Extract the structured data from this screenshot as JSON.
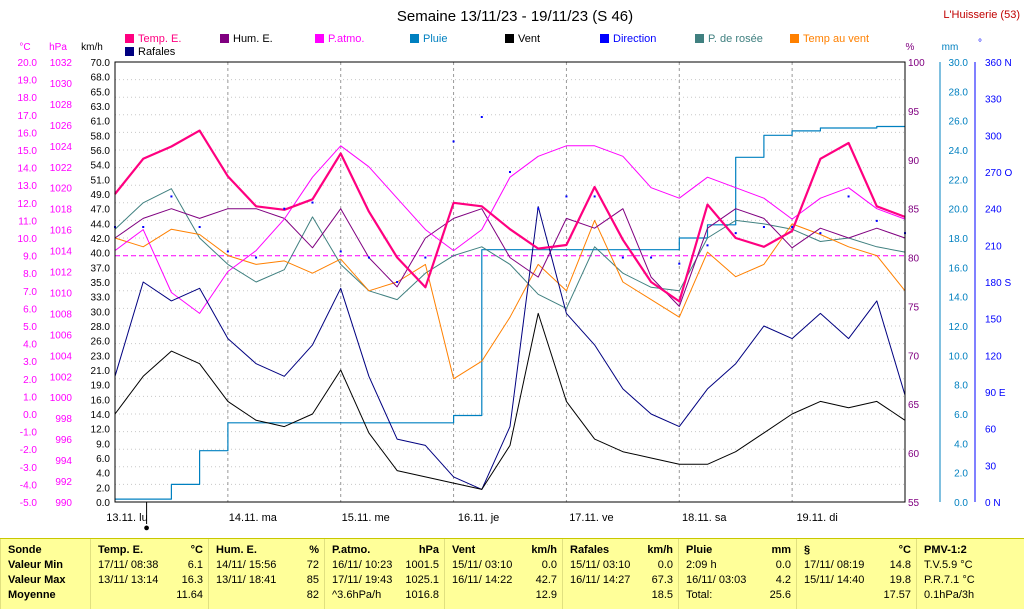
{
  "chart_data": {
    "type": "line",
    "title": "Semaine 13/11/23 - 19/11/23 (S 46)",
    "station": "L'Huisserie (53)",
    "colors": {
      "temp": "#ff0080",
      "hum": "#800080",
      "patmo": "#ff00ff",
      "pluie": "#0080c0",
      "vent": "#000000",
      "direction": "#0000ff",
      "rosee": "#408080",
      "tempvent": "#ff8000",
      "rafales": "#000080",
      "axis_c": "#ff00ff",
      "axis_right": "#0080c0"
    },
    "legend": [
      {
        "label": "Temp. E.",
        "color": "#ff0080"
      },
      {
        "label": "Hum. E.",
        "color": "#800080"
      },
      {
        "label": "P.atmo.",
        "color": "#ff00ff"
      },
      {
        "label": "Pluie",
        "color": "#0080c0"
      },
      {
        "label": "Vent",
        "color": "#000000"
      },
      {
        "label": "Direction",
        "color": "#0000ff"
      },
      {
        "label": "P. de rosée",
        "color": "#408080"
      },
      {
        "label": "Temp au vent",
        "color": "#ff8000"
      },
      {
        "label": "Rafales",
        "color": "#000080"
      }
    ],
    "axis_units": {
      "c": "°C",
      "hpa": "hPa",
      "kmh": "km/h",
      "pct": "%",
      "mm": "mm",
      "deg": "°"
    },
    "ticks": {
      "c": [
        "20.0",
        "19.0",
        "18.0",
        "17.0",
        "16.0",
        "15.0",
        "14.0",
        "13.0",
        "12.0",
        "11.0",
        "10.0",
        "9.0",
        "8.0",
        "7.0",
        "6.0",
        "5.0",
        "4.0",
        "3.0",
        "2.0",
        "1.0",
        "0.0",
        "-1.0",
        "-2.0",
        "-3.0",
        "-4.0",
        "-5.0"
      ],
      "hpa": [
        "1032",
        "1030",
        "1028",
        "1026",
        "1024",
        "1022",
        "1020",
        "1018",
        "1016",
        "1014",
        "1012",
        "1010",
        "1008",
        "1006",
        "1004",
        "1002",
        "1000",
        "998",
        "996",
        "994",
        "992",
        "990"
      ],
      "kmh": [
        "70.0",
        "68.0",
        "65.0",
        "63.0",
        "61.0",
        "58.0",
        "56.0",
        "54.0",
        "51.0",
        "49.0",
        "47.0",
        "44.0",
        "42.0",
        "40.0",
        "37.0",
        "35.0",
        "33.0",
        "30.0",
        "28.0",
        "26.0",
        "23.0",
        "21.0",
        "19.0",
        "16.0",
        "14.0",
        "12.0",
        "9.0",
        "6.0",
        "4.0",
        "2.0",
        "0.0"
      ],
      "pct": [
        "100",
        "95",
        "90",
        "85",
        "80",
        "75",
        "70",
        "65",
        "60",
        "55"
      ],
      "mm": [
        "30.0",
        "28.0",
        "26.0",
        "24.0",
        "22.0",
        "20.0",
        "18.0",
        "16.0",
        "14.0",
        "12.0",
        "10.0",
        "8.0",
        "6.0",
        "4.0",
        "2.0",
        "0.0"
      ],
      "deg": [
        "360 N",
        "330",
        "300",
        "270 O",
        "240",
        "210",
        "180 S",
        "150",
        "120",
        "90 E",
        "60",
        "30",
        "0 N"
      ]
    },
    "x_labels": [
      "13.11.  lu",
      "14.11.  ma",
      "15.11.  me",
      "16.11.  je",
      "17.11.  ve",
      "18.11.  sa",
      "19.11.  di"
    ],
    "ylim_c": [
      -5,
      20
    ],
    "ylim_hpa": [
      990,
      1032
    ],
    "ylim_kmh": [
      0,
      70
    ],
    "ylim_pct": [
      55,
      100
    ],
    "ylim_mm": [
      0,
      30
    ],
    "ylim_deg": [
      0,
      360
    ],
    "x": [
      0,
      0.25,
      0.5,
      0.75,
      1,
      1.25,
      1.5,
      1.75,
      2,
      2.25,
      2.5,
      2.75,
      3,
      3.25,
      3.5,
      3.75,
      4,
      4.25,
      4.5,
      4.75,
      5,
      5.25,
      5.5,
      5.75,
      6,
      6.25,
      6.5,
      6.75,
      7
    ],
    "series": [
      {
        "name": "Temp. E.",
        "axis": "c",
        "color": "#ff0080",
        "width": 2.2,
        "values": [
          12.5,
          14.5,
          15.2,
          16.1,
          13.5,
          11.8,
          11.6,
          12.2,
          14.8,
          11.5,
          8.9,
          7.2,
          12.0,
          11.8,
          10.5,
          9.4,
          9.6,
          12.9,
          9.9,
          7.5,
          6.4,
          11.9,
          10.0,
          9.5,
          10.4,
          14.5,
          15.4,
          11.8,
          11.2
        ]
      },
      {
        "name": "Hum. E.",
        "axis": "pct",
        "color": "#800080",
        "width": 1,
        "values": [
          82,
          84,
          85,
          84,
          85,
          85,
          84,
          81,
          85,
          80,
          77,
          82,
          84,
          85,
          80,
          78,
          84,
          83,
          85,
          78,
          75,
          83,
          85,
          84,
          81,
          83,
          82,
          83,
          82
        ]
      },
      {
        "name": "P.atmo.",
        "axis": "hpa",
        "color": "#ff00ff",
        "width": 1,
        "values": [
          1014,
          1016,
          1010,
          1008,
          1012,
          1014,
          1017,
          1021,
          1024,
          1022,
          1019,
          1016,
          1014,
          1016,
          1021,
          1023,
          1024,
          1024,
          1023,
          1020,
          1019,
          1021,
          1020,
          1019,
          1017,
          1019,
          1020,
          1018,
          1017
        ]
      },
      {
        "name": "Pluie",
        "axis": "mm",
        "color": "#0080c0",
        "width": 1.2,
        "step": true,
        "values": [
          0.2,
          0.2,
          1.2,
          3.5,
          5.4,
          5.4,
          5.4,
          5.4,
          5.4,
          5.4,
          5.4,
          5.4,
          5.9,
          17.2,
          17.2,
          17.2,
          17.2,
          17.2,
          17.2,
          17.2,
          18.0,
          18.9,
          23.5,
          25.0,
          25.3,
          25.5,
          25.5,
          25.6,
          25.6
        ]
      },
      {
        "name": "Vent",
        "axis": "kmh",
        "color": "#000000",
        "width": 1,
        "values": [
          14,
          20,
          24,
          22,
          16,
          13,
          12,
          14,
          21,
          11,
          5,
          4,
          3,
          2,
          9,
          30,
          16,
          10,
          8,
          7,
          6,
          6,
          8,
          11,
          14,
          16,
          15,
          16,
          13
        ]
      },
      {
        "name": "Direction",
        "axis": "deg",
        "color": "#0000ff",
        "width": 0,
        "dots": true,
        "values": [
          225,
          225,
          250,
          225,
          205,
          200,
          240,
          245,
          205,
          200,
          180,
          200,
          295,
          315,
          270,
          240,
          250,
          250,
          200,
          200,
          195,
          210,
          220,
          225,
          225,
          220,
          250,
          230,
          220
        ]
      },
      {
        "name": "P. de rosée",
        "axis": "c",
        "color": "#408080",
        "width": 1,
        "values": [
          10.5,
          12.0,
          12.8,
          10.0,
          8.5,
          7.5,
          8.2,
          11.2,
          8.5,
          7.0,
          6.5,
          8.0,
          9.0,
          9.5,
          8.5,
          6.8,
          6.0,
          9.5,
          8.0,
          7.2,
          7.0,
          10.0,
          11.0,
          10.8,
          10.5,
          9.8,
          10.0,
          9.5,
          9.2
        ]
      },
      {
        "name": "Temp au vent",
        "axis": "c",
        "color": "#ff8000",
        "width": 1,
        "values": [
          10.0,
          9.5,
          10.5,
          10.2,
          9.0,
          8.5,
          8.7,
          8.0,
          8.8,
          7.0,
          7.5,
          8.5,
          2.0,
          3.0,
          5.5,
          8.5,
          7.0,
          11.0,
          7.5,
          6.5,
          5.5,
          9.2,
          7.8,
          8.5,
          10.8,
          10.2,
          9.5,
          9.0,
          7.0
        ]
      },
      {
        "name": "Rafales",
        "axis": "kmh",
        "color": "#000080",
        "width": 1,
        "values": [
          20,
          35,
          32,
          34,
          26,
          22,
          20,
          25,
          34,
          20,
          10,
          9,
          4,
          2,
          12,
          47,
          30,
          25,
          18,
          14,
          12,
          18,
          22,
          28,
          26,
          30,
          26,
          32,
          17
        ]
      }
    ],
    "trend_line": {
      "axis": "hpa",
      "value": 1013.5,
      "color": "#ff00ff"
    },
    "moon_marker": "●"
  },
  "table": {
    "columns": [
      {
        "title": "Sonde",
        "unit": "",
        "rows": [
          [
            "Valeur Min",
            ""
          ],
          [
            "Valeur Max",
            ""
          ],
          [
            "Moyenne",
            ""
          ]
        ]
      },
      {
        "title": "Temp. E.",
        "unit": "°C",
        "rows": [
          [
            "17/11/ 08:38",
            "6.1"
          ],
          [
            "13/11/ 13:14",
            "16.3"
          ],
          [
            "",
            "11.64"
          ]
        ]
      },
      {
        "title": "Hum. E.",
        "unit": "%",
        "rows": [
          [
            "14/11/ 15:56",
            "72"
          ],
          [
            "13/11/ 18:41",
            "85"
          ],
          [
            "",
            "82"
          ]
        ]
      },
      {
        "title": "P.atmo.",
        "unit": "hPa",
        "rows": [
          [
            "16/11/ 10:23",
            "1001.5"
          ],
          [
            "17/11/ 19:43",
            "1025.1"
          ],
          [
            "^3.6hPa/h",
            "1016.8"
          ]
        ]
      },
      {
        "title": "Vent",
        "unit": "km/h",
        "rows": [
          [
            "15/11/ 03:10",
            "0.0"
          ],
          [
            "16/11/ 14:22",
            "42.7"
          ],
          [
            "",
            "12.9"
          ]
        ]
      },
      {
        "title": "Rafales",
        "unit": "km/h",
        "rows": [
          [
            "15/11/ 03:10",
            "0.0"
          ],
          [
            "16/11/ 14:27",
            "67.3"
          ],
          [
            "",
            "18.5"
          ]
        ]
      },
      {
        "title": "Pluie",
        "unit": "mm",
        "rows": [
          [
            "2:09 h",
            "0.0"
          ],
          [
            "16/11/ 03:03",
            "4.2"
          ],
          [
            "Total:",
            "25.6"
          ]
        ]
      },
      {
        "title": "§",
        "unit": "°C",
        "rows": [
          [
            "17/11/ 08:19",
            "14.8"
          ],
          [
            "15/11/ 14:40",
            "19.8"
          ],
          [
            "",
            "17.57"
          ]
        ]
      },
      {
        "title": "PMV-1:2",
        "unit": "",
        "rows": [
          [
            "T.V.5.9 °C",
            ""
          ],
          [
            "P.R.7.1 °C",
            ""
          ],
          [
            "0.1hPa/3h",
            ""
          ]
        ]
      }
    ]
  }
}
